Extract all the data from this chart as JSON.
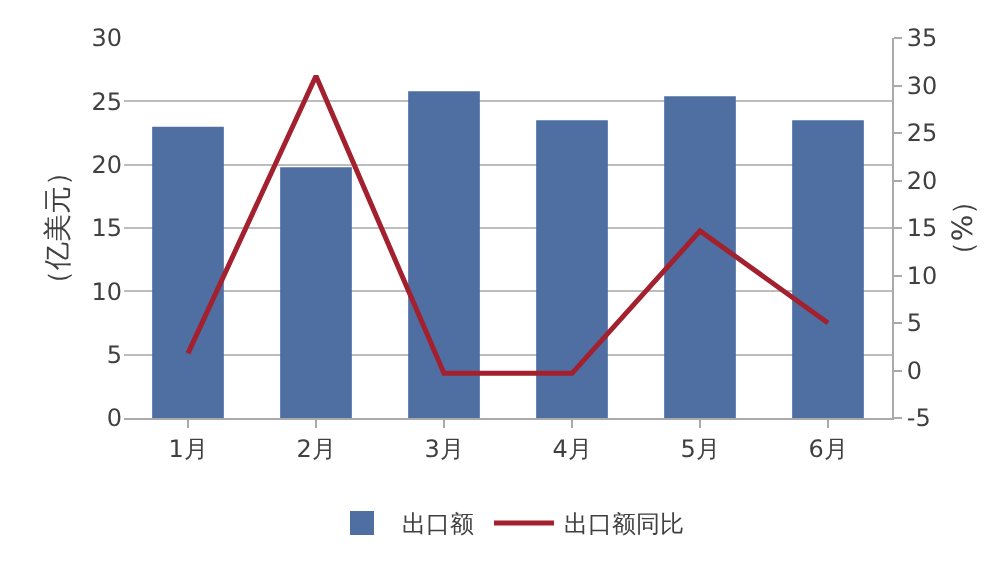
{
  "chart_data": {
    "type": "bar",
    "categories": [
      "1月",
      "2月",
      "3月",
      "4月",
      "5月",
      "6月"
    ],
    "series": [
      {
        "name": "出口额",
        "color": "#4f6fa3",
        "values": [
          23,
          19.8,
          25.8,
          23.5,
          25.4,
          23.5
        ]
      },
      {
        "name": "出口额同比",
        "type": "line",
        "axis": "y2",
        "color": "#a3202e",
        "values": [
          1.8,
          31,
          -0.3,
          -0.3,
          14.7,
          5
        ]
      }
    ],
    "ylabel": "（亿美元）",
    "y2label": "（%）",
    "ylim": [
      0,
      30
    ],
    "yticks": [
      0,
      5,
      10,
      15,
      20,
      25,
      30
    ],
    "y2lim": [
      -5,
      35
    ],
    "y2ticks": [
      -5,
      0,
      5,
      10,
      15,
      20,
      25,
      30,
      35
    ],
    "grid": "y",
    "legend": "bottom",
    "marker": "none"
  }
}
